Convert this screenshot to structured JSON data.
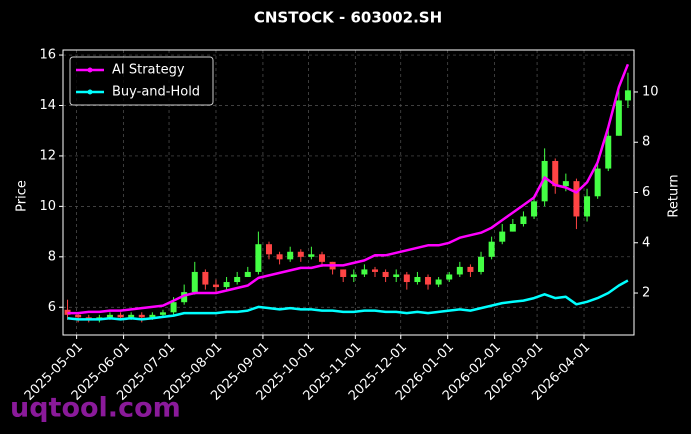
{
  "chart_data": {
    "type": "candlestick",
    "title": "CNSTOCK - 603002.SH",
    "ylabel": "Price",
    "y2label": "Return",
    "x": [
      "2025-04-25",
      "2025-05-02",
      "2025-05-09",
      "2025-05-16",
      "2025-05-23",
      "2025-05-30",
      "2025-06-06",
      "2025-06-13",
      "2025-06-20",
      "2025-06-27",
      "2025-07-04",
      "2025-07-11",
      "2025-07-18",
      "2025-07-25",
      "2025-08-01",
      "2025-08-08",
      "2025-08-15",
      "2025-08-22",
      "2025-08-29",
      "2025-09-05",
      "2025-09-12",
      "2025-09-19",
      "2025-09-26",
      "2025-10-03",
      "2025-10-10",
      "2025-10-17",
      "2025-10-24",
      "2025-10-31",
      "2025-11-07",
      "2025-11-14",
      "2025-11-21",
      "2025-11-28",
      "2025-12-05",
      "2025-12-12",
      "2025-12-19",
      "2025-12-26",
      "2026-01-02",
      "2026-01-09",
      "2026-01-16",
      "2026-01-23",
      "2026-01-30",
      "2026-02-06",
      "2026-02-13",
      "2026-02-20",
      "2026-02-27",
      "2026-03-06",
      "2026-03-13",
      "2026-03-20",
      "2026-03-27",
      "2026-04-03",
      "2026-04-10",
      "2026-04-17",
      "2026-04-24",
      "2026-04-30"
    ],
    "opens": [
      5.9,
      5.7,
      5.6,
      5.5,
      5.6,
      5.7,
      5.6,
      5.7,
      5.6,
      5.7,
      5.8,
      6.2,
      6.6,
      7.4,
      6.9,
      6.8,
      7.0,
      7.2,
      7.4,
      8.5,
      8.1,
      7.9,
      8.2,
      8.0,
      8.1,
      7.8,
      7.5,
      7.2,
      7.3,
      7.5,
      7.4,
      7.2,
      7.3,
      7.0,
      7.2,
      6.9,
      7.1,
      7.3,
      7.6,
      7.4,
      8.0,
      8.6,
      9.0,
      9.3,
      9.6,
      10.2,
      11.8,
      10.8,
      11.0,
      9.6,
      10.4,
      11.5,
      12.8,
      14.2
    ],
    "highs": [
      6.3,
      5.8,
      5.7,
      5.7,
      5.8,
      5.8,
      5.8,
      5.8,
      5.8,
      5.9,
      6.4,
      6.9,
      7.8,
      7.5,
      7.1,
      7.2,
      7.4,
      7.6,
      9.0,
      8.6,
      8.2,
      8.4,
      8.3,
      8.4,
      8.2,
      7.8,
      7.5,
      7.5,
      7.7,
      7.6,
      7.5,
      7.5,
      7.4,
      7.4,
      7.3,
      7.2,
      7.4,
      7.8,
      7.7,
      8.2,
      8.8,
      9.3,
      9.5,
      9.8,
      10.4,
      12.3,
      11.9,
      11.3,
      11.1,
      10.7,
      11.8,
      13.2,
      14.6,
      15.3
    ],
    "lows": [
      5.5,
      5.4,
      5.4,
      5.4,
      5.5,
      5.5,
      5.5,
      5.4,
      5.5,
      5.6,
      5.7,
      6.1,
      6.5,
      6.7,
      6.6,
      6.7,
      6.9,
      7.2,
      7.3,
      7.9,
      7.7,
      7.8,
      7.8,
      7.9,
      7.6,
      7.3,
      7.0,
      7.0,
      7.2,
      7.2,
      7.0,
      7.0,
      6.7,
      6.9,
      6.7,
      6.8,
      7.0,
      7.2,
      7.2,
      7.3,
      7.9,
      8.5,
      9.0,
      9.2,
      9.5,
      10.0,
      10.5,
      10.6,
      9.1,
      9.4,
      10.3,
      11.4,
      12.8,
      13.9
    ],
    "closes": [
      5.7,
      5.6,
      5.5,
      5.6,
      5.7,
      5.6,
      5.7,
      5.6,
      5.7,
      5.8,
      6.2,
      6.6,
      7.4,
      6.9,
      6.8,
      7.0,
      7.2,
      7.4,
      8.5,
      8.1,
      7.9,
      8.2,
      8.0,
      8.1,
      7.8,
      7.5,
      7.2,
      7.3,
      7.5,
      7.4,
      7.2,
      7.3,
      7.0,
      7.2,
      6.9,
      7.1,
      7.3,
      7.6,
      7.4,
      8.0,
      8.6,
      9.0,
      9.3,
      9.6,
      10.2,
      11.8,
      10.8,
      11.0,
      9.6,
      10.4,
      11.5,
      12.8,
      14.2,
      14.6
    ],
    "up_color": "#44ff44",
    "down_color": "#ff4444",
    "series": [
      {
        "name": "AI Strategy",
        "color": "#ff00ff",
        "axis": "y2",
        "values": [
          1.2,
          1.2,
          1.25,
          1.25,
          1.3,
          1.3,
          1.35,
          1.4,
          1.45,
          1.5,
          1.7,
          1.9,
          2.0,
          2.0,
          2.0,
          2.1,
          2.2,
          2.3,
          2.6,
          2.7,
          2.8,
          2.9,
          3.0,
          3.0,
          3.1,
          3.1,
          3.1,
          3.2,
          3.3,
          3.5,
          3.5,
          3.6,
          3.7,
          3.8,
          3.9,
          3.9,
          4.0,
          4.2,
          4.3,
          4.4,
          4.6,
          4.9,
          5.2,
          5.5,
          5.8,
          6.6,
          6.3,
          6.2,
          6.0,
          6.4,
          7.2,
          8.6,
          10.2,
          11.1
        ]
      },
      {
        "name": "Buy-and-Hold",
        "color": "#00ffff",
        "axis": "y2",
        "values": [
          1.0,
          0.95,
          0.95,
          0.95,
          1.0,
          0.95,
          1.0,
          0.95,
          1.0,
          1.05,
          1.1,
          1.2,
          1.2,
          1.2,
          1.2,
          1.25,
          1.25,
          1.3,
          1.45,
          1.4,
          1.35,
          1.4,
          1.35,
          1.35,
          1.3,
          1.3,
          1.25,
          1.25,
          1.3,
          1.3,
          1.25,
          1.25,
          1.2,
          1.25,
          1.2,
          1.25,
          1.3,
          1.35,
          1.3,
          1.4,
          1.5,
          1.6,
          1.65,
          1.7,
          1.8,
          1.95,
          1.8,
          1.85,
          1.55,
          1.65,
          1.8,
          2.0,
          2.3,
          2.5
        ]
      }
    ],
    "xlim": [
      "2025-04-22",
      "2026-05-04"
    ],
    "xticks": [
      "2025-05-01",
      "2025-06-01",
      "2025-07-01",
      "2025-08-01",
      "2025-09-01",
      "2025-10-01",
      "2025-11-01",
      "2025-12-01",
      "2026-01-01",
      "2026-02-01",
      "2026-03-01",
      "2026-04-01"
    ],
    "ylim": [
      4.9,
      16.2
    ],
    "yticks": [
      6,
      8,
      10,
      12,
      14,
      16
    ],
    "y2lim": [
      0.33,
      11.67
    ],
    "y2ticks": [
      2,
      4,
      6,
      8,
      10
    ],
    "grid": true,
    "legend": "upper left"
  },
  "watermark": "uqtool.com"
}
